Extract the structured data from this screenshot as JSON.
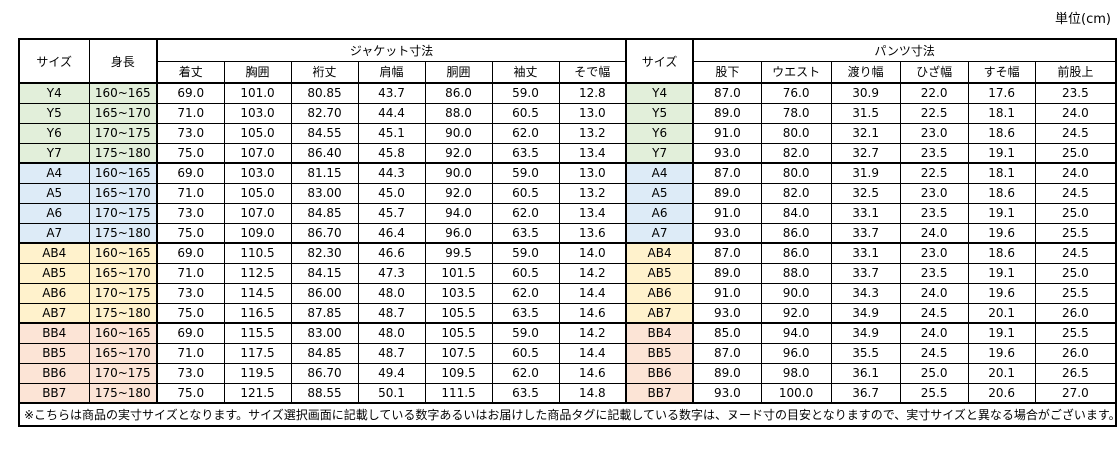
{
  "unit_label": "単位(cm)",
  "table": {
    "headers": {
      "size": "サイズ",
      "height": "身長",
      "jacket_group": "ジャケット寸法",
      "jacket_cols": [
        "着丈",
        "胸囲",
        "裄丈",
        "肩幅",
        "胴囲",
        "袖丈",
        "そで幅"
      ],
      "size2": "サイズ",
      "pants_group": "パンツ寸法",
      "pants_cols": [
        "股下",
        "ウエスト",
        "渡り幅",
        "ひざ幅",
        "すそ幅",
        "前股上"
      ]
    },
    "groups": [
      {
        "name": "Y",
        "color": "#E2EFDA",
        "rows": [
          {
            "size": "Y4",
            "height": "160~165",
            "jacket": [
              "69.0",
              "101.0",
              "80.85",
              "43.7",
              "86.0",
              "59.0",
              "12.8"
            ],
            "pants": [
              "87.0",
              "76.0",
              "30.9",
              "22.0",
              "17.6",
              "23.5"
            ]
          },
          {
            "size": "Y5",
            "height": "165~170",
            "jacket": [
              "71.0",
              "103.0",
              "82.70",
              "44.4",
              "88.0",
              "60.5",
              "13.0"
            ],
            "pants": [
              "89.0",
              "78.0",
              "31.5",
              "22.5",
              "18.1",
              "24.0"
            ]
          },
          {
            "size": "Y6",
            "height": "170~175",
            "jacket": [
              "73.0",
              "105.0",
              "84.55",
              "45.1",
              "90.0",
              "62.0",
              "13.2"
            ],
            "pants": [
              "91.0",
              "80.0",
              "32.1",
              "23.0",
              "18.6",
              "24.5"
            ]
          },
          {
            "size": "Y7",
            "height": "175~180",
            "jacket": [
              "75.0",
              "107.0",
              "86.40",
              "45.8",
              "92.0",
              "63.5",
              "13.4"
            ],
            "pants": [
              "93.0",
              "82.0",
              "32.7",
              "23.5",
              "19.1",
              "25.0"
            ]
          }
        ]
      },
      {
        "name": "A",
        "color": "#DDEBF7",
        "rows": [
          {
            "size": "A4",
            "height": "160~165",
            "jacket": [
              "69.0",
              "103.0",
              "81.15",
              "44.3",
              "90.0",
              "59.0",
              "13.0"
            ],
            "pants": [
              "87.0",
              "80.0",
              "31.9",
              "22.5",
              "18.1",
              "24.0"
            ]
          },
          {
            "size": "A5",
            "height": "165~170",
            "jacket": [
              "71.0",
              "105.0",
              "83.00",
              "45.0",
              "92.0",
              "60.5",
              "13.2"
            ],
            "pants": [
              "89.0",
              "82.0",
              "32.5",
              "23.0",
              "18.6",
              "24.5"
            ]
          },
          {
            "size": "A6",
            "height": "170~175",
            "jacket": [
              "73.0",
              "107.0",
              "84.85",
              "45.7",
              "94.0",
              "62.0",
              "13.4"
            ],
            "pants": [
              "91.0",
              "84.0",
              "33.1",
              "23.5",
              "19.1",
              "25.0"
            ]
          },
          {
            "size": "A7",
            "height": "175~180",
            "jacket": [
              "75.0",
              "109.0",
              "86.70",
              "46.4",
              "96.0",
              "63.5",
              "13.6"
            ],
            "pants": [
              "93.0",
              "86.0",
              "33.7",
              "24.0",
              "19.6",
              "25.5"
            ]
          }
        ]
      },
      {
        "name": "AB",
        "color": "#FFF2CC",
        "rows": [
          {
            "size": "AB4",
            "height": "160~165",
            "jacket": [
              "69.0",
              "110.5",
              "82.30",
              "46.6",
              "99.5",
              "59.0",
              "14.0"
            ],
            "pants": [
              "87.0",
              "86.0",
              "33.1",
              "23.0",
              "18.6",
              "24.5"
            ]
          },
          {
            "size": "AB5",
            "height": "165~170",
            "jacket": [
              "71.0",
              "112.5",
              "84.15",
              "47.3",
              "101.5",
              "60.5",
              "14.2"
            ],
            "pants": [
              "89.0",
              "88.0",
              "33.7",
              "23.5",
              "19.1",
              "25.0"
            ]
          },
          {
            "size": "AB6",
            "height": "170~175",
            "jacket": [
              "73.0",
              "114.5",
              "86.00",
              "48.0",
              "103.5",
              "62.0",
              "14.4"
            ],
            "pants": [
              "91.0",
              "90.0",
              "34.3",
              "24.0",
              "19.6",
              "25.5"
            ]
          },
          {
            "size": "AB7",
            "height": "175~180",
            "jacket": [
              "75.0",
              "116.5",
              "87.85",
              "48.7",
              "105.5",
              "63.5",
              "14.6"
            ],
            "pants": [
              "93.0",
              "92.0",
              "34.9",
              "24.5",
              "20.1",
              "26.0"
            ]
          }
        ]
      },
      {
        "name": "BB",
        "color": "#FCE4D6",
        "rows": [
          {
            "size": "BB4",
            "height": "160~165",
            "jacket": [
              "69.0",
              "115.5",
              "83.00",
              "48.0",
              "105.5",
              "59.0",
              "14.2"
            ],
            "pants": [
              "85.0",
              "94.0",
              "34.9",
              "24.0",
              "19.1",
              "25.5"
            ]
          },
          {
            "size": "BB5",
            "height": "165~170",
            "jacket": [
              "71.0",
              "117.5",
              "84.85",
              "48.7",
              "107.5",
              "60.5",
              "14.4"
            ],
            "pants": [
              "87.0",
              "96.0",
              "35.5",
              "24.5",
              "19.6",
              "26.0"
            ]
          },
          {
            "size": "BB6",
            "height": "170~175",
            "jacket": [
              "73.0",
              "119.5",
              "86.70",
              "49.4",
              "109.5",
              "62.0",
              "14.6"
            ],
            "pants": [
              "89.0",
              "98.0",
              "36.1",
              "25.0",
              "20.1",
              "26.5"
            ]
          },
          {
            "size": "BB7",
            "height": "175~180",
            "jacket": [
              "75.0",
              "121.5",
              "88.55",
              "50.1",
              "111.5",
              "63.5",
              "14.8"
            ],
            "pants": [
              "93.0",
              "100.0",
              "36.7",
              "25.5",
              "20.6",
              "27.0"
            ]
          }
        ]
      }
    ],
    "footnote": "※こちらは商品の実寸サイズとなります。サイズ選択画面に記載している数字あるいはお届けした商品タグに記載している数字は、ヌード寸の目安となりますので、実寸サイズと異なる場合がございます。"
  }
}
